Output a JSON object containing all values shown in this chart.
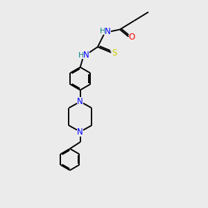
{
  "bg_color": "#ebebeb",
  "atom_colors": {
    "N": "#0000ff",
    "O": "#ff0000",
    "S": "#cccc00",
    "C": "#000000",
    "H": "#008080"
  },
  "bond_color": "#000000",
  "figsize": [
    3.0,
    3.0
  ],
  "dpi": 100
}
